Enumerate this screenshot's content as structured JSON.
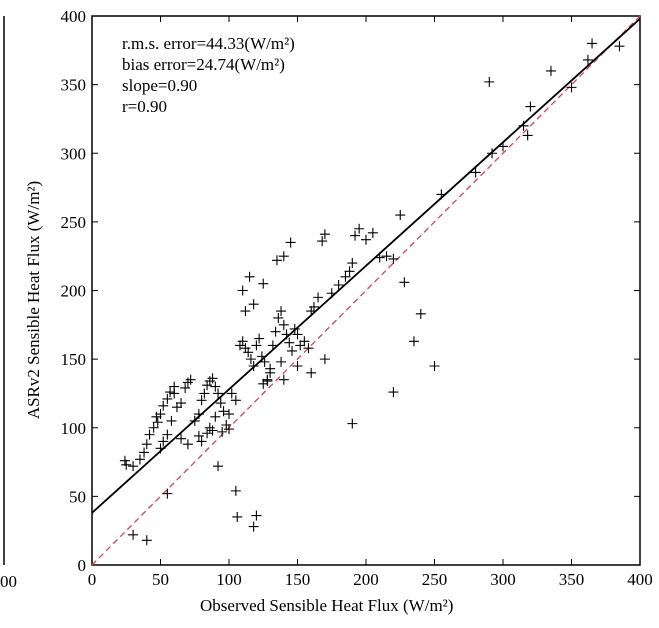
{
  "chart_data": {
    "type": "scatter",
    "xlabel": "Observed Sensible Heat Flux (W/m²)",
    "ylabel": "ASRv2 Sensible Heat Flux (W/m²)",
    "xlim": [
      0,
      400
    ],
    "ylim": [
      0,
      400
    ],
    "x_ticks": [
      "0",
      "50",
      "100",
      "150",
      "200",
      "250",
      "300",
      "350",
      "400"
    ],
    "y_ticks": [
      "0",
      "50",
      "100",
      "150",
      "200",
      "250",
      "300",
      "350",
      "400"
    ],
    "edge_tick_label": "00",
    "stats": [
      "r.m.s. error=44.33(W/m²)",
      "bias error=24.74(W/m²)",
      "slope=0.90",
      "r=0.90"
    ],
    "fit_line": {
      "slope": 0.9,
      "intercept": 38,
      "color": "#000000"
    },
    "one_to_one_line": {
      "slope": 1,
      "intercept": 0,
      "color": "#d9434e",
      "style": "dashed"
    },
    "marker": "+",
    "points": [
      [
        24,
        76
      ],
      [
        25,
        73
      ],
      [
        30,
        72
      ],
      [
        35,
        77
      ],
      [
        38,
        82
      ],
      [
        40,
        88
      ],
      [
        42,
        95
      ],
      [
        45,
        100
      ],
      [
        48,
        104
      ],
      [
        50,
        110
      ],
      [
        52,
        116
      ],
      [
        55,
        121
      ],
      [
        57,
        126
      ],
      [
        60,
        130
      ],
      [
        62,
        115
      ],
      [
        65,
        118
      ],
      [
        68,
        129
      ],
      [
        70,
        133
      ],
      [
        72,
        135
      ],
      [
        75,
        105
      ],
      [
        78,
        110
      ],
      [
        80,
        120
      ],
      [
        82,
        125
      ],
      [
        84,
        131
      ],
      [
        86,
        134
      ],
      [
        88,
        136
      ],
      [
        90,
        130
      ],
      [
        92,
        125
      ],
      [
        94,
        118
      ],
      [
        96,
        112
      ],
      [
        98,
        102
      ],
      [
        100,
        110
      ],
      [
        102,
        125
      ],
      [
        105,
        120
      ],
      [
        108,
        160
      ],
      [
        110,
        163
      ],
      [
        112,
        158
      ],
      [
        114,
        155
      ],
      [
        116,
        150
      ],
      [
        118,
        145
      ],
      [
        120,
        160
      ],
      [
        122,
        165
      ],
      [
        124,
        152
      ],
      [
        126,
        148
      ],
      [
        128,
        135
      ],
      [
        130,
        140
      ],
      [
        132,
        160
      ],
      [
        134,
        170
      ],
      [
        136,
        180
      ],
      [
        138,
        185
      ],
      [
        140,
        175
      ],
      [
        142,
        168
      ],
      [
        144,
        162
      ],
      [
        146,
        156
      ],
      [
        148,
        172
      ],
      [
        150,
        168
      ],
      [
        152,
        160
      ],
      [
        155,
        163
      ],
      [
        158,
        158
      ],
      [
        160,
        185
      ],
      [
        162,
        188
      ],
      [
        165,
        195
      ],
      [
        168,
        236
      ],
      [
        170,
        241
      ],
      [
        175,
        198
      ],
      [
        180,
        204
      ],
      [
        185,
        210
      ],
      [
        188,
        214
      ],
      [
        190,
        220
      ],
      [
        192,
        240
      ],
      [
        195,
        245
      ],
      [
        200,
        237
      ],
      [
        205,
        242
      ],
      [
        210,
        224
      ],
      [
        215,
        225
      ],
      [
        220,
        223
      ],
      [
        225,
        255
      ],
      [
        228,
        206
      ],
      [
        235,
        163
      ],
      [
        240,
        183
      ],
      [
        255,
        270
      ],
      [
        280,
        286
      ],
      [
        290,
        352
      ],
      [
        292,
        300
      ],
      [
        300,
        305
      ],
      [
        315,
        320
      ],
      [
        318,
        313
      ],
      [
        320,
        334
      ],
      [
        335,
        360
      ],
      [
        350,
        348
      ],
      [
        362,
        368
      ],
      [
        365,
        380
      ],
      [
        385,
        378
      ],
      [
        110,
        200
      ],
      [
        115,
        210
      ],
      [
        118,
        190
      ],
      [
        112,
        185
      ],
      [
        125,
        205
      ],
      [
        135,
        222
      ],
      [
        140,
        225
      ],
      [
        145,
        235
      ],
      [
        130,
        143
      ],
      [
        128,
        134
      ],
      [
        125,
        132
      ],
      [
        90,
        108
      ],
      [
        88,
        98
      ],
      [
        86,
        100
      ],
      [
        84,
        96
      ],
      [
        80,
        90
      ],
      [
        78,
        94
      ],
      [
        60,
        125
      ],
      [
        58,
        105
      ],
      [
        55,
        95
      ],
      [
        52,
        90
      ],
      [
        50,
        85
      ],
      [
        70,
        88
      ],
      [
        65,
        92
      ],
      [
        92,
        72
      ],
      [
        105,
        54
      ],
      [
        106,
        35
      ],
      [
        118,
        28
      ],
      [
        120,
        36
      ],
      [
        55,
        52
      ],
      [
        30,
        22
      ],
      [
        40,
        18
      ],
      [
        220,
        126
      ],
      [
        190,
        103
      ],
      [
        250,
        145
      ],
      [
        170,
        150
      ],
      [
        160,
        140
      ],
      [
        150,
        145
      ],
      [
        140,
        135
      ],
      [
        138,
        148
      ],
      [
        100,
        99
      ],
      [
        95,
        97
      ],
      [
        47,
        108
      ]
    ]
  }
}
